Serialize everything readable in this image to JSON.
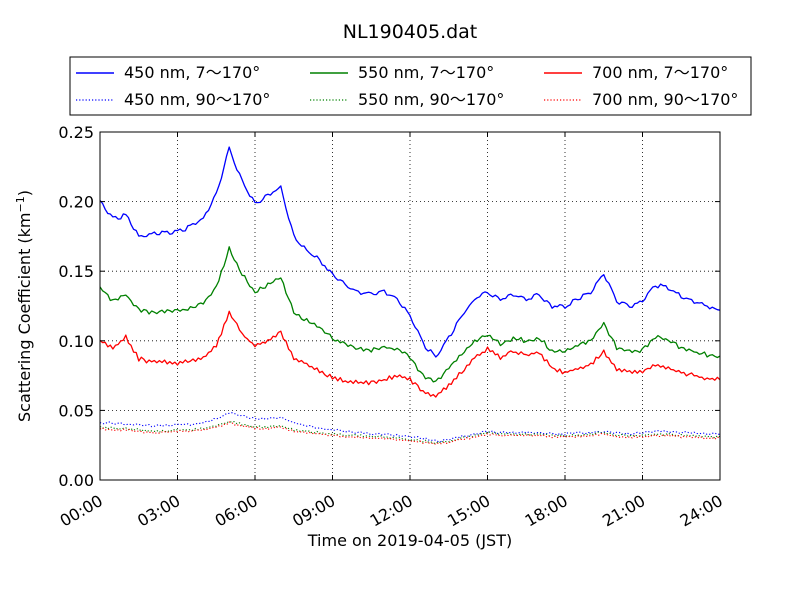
{
  "chart_data": {
    "type": "line",
    "title": "NL190405.dat",
    "xlabel": "Time on 2019-04-05 (JST)",
    "ylabel_main": "Scattering Coefficient (km",
    "ylabel_sup": "−1",
    "ylabel_close": ")",
    "xlim": [
      "00:00",
      "24:00"
    ],
    "ylim": [
      0,
      0.25
    ],
    "grid": true,
    "grid_style": "dotted",
    "legend_position": "top, above plot, 3 columns",
    "x_ticks": [
      {
        "hour": 0,
        "label": "00:00"
      },
      {
        "hour": 3,
        "label": "03:00"
      },
      {
        "hour": 6,
        "label": "06:00"
      },
      {
        "hour": 9,
        "label": "09:00"
      },
      {
        "hour": 12,
        "label": "12:00"
      },
      {
        "hour": 15,
        "label": "15:00"
      },
      {
        "hour": 18,
        "label": "18:00"
      },
      {
        "hour": 21,
        "label": "21:00"
      },
      {
        "hour": 24,
        "label": "24:00"
      }
    ],
    "y_ticks": [
      {
        "value": 0.0,
        "label": "0.00"
      },
      {
        "value": 0.05,
        "label": "0.05"
      },
      {
        "value": 0.1,
        "label": "0.10"
      },
      {
        "value": 0.15,
        "label": "0.15"
      },
      {
        "value": 0.2,
        "label": "0.20"
      },
      {
        "value": 0.25,
        "label": "0.25"
      }
    ],
    "x": [
      "00:00",
      "00:30",
      "01:00",
      "01:30",
      "02:00",
      "02:30",
      "03:00",
      "03:30",
      "04:00",
      "04:30",
      "05:00",
      "05:30",
      "06:00",
      "06:30",
      "07:00",
      "07:30",
      "08:00",
      "08:30",
      "09:00",
      "09:30",
      "10:00",
      "10:30",
      "11:00",
      "11:30",
      "12:00",
      "12:30",
      "13:00",
      "13:30",
      "14:00",
      "14:30",
      "15:00",
      "15:30",
      "16:00",
      "16:30",
      "17:00",
      "17:30",
      "18:00",
      "18:30",
      "19:00",
      "19:30",
      "20:00",
      "20:30",
      "21:00",
      "21:30",
      "22:00",
      "22:30",
      "23:00",
      "23:30",
      "24:00"
    ],
    "series": [
      {
        "name": "450 nm, 7～170°",
        "color": "#0000ff",
        "style": "solid",
        "values": [
          0.2,
          0.188,
          0.19,
          0.175,
          0.177,
          0.178,
          0.178,
          0.182,
          0.188,
          0.205,
          0.238,
          0.215,
          0.198,
          0.205,
          0.21,
          0.175,
          0.165,
          0.158,
          0.148,
          0.14,
          0.135,
          0.133,
          0.135,
          0.13,
          0.118,
          0.098,
          0.088,
          0.102,
          0.118,
          0.13,
          0.135,
          0.13,
          0.133,
          0.13,
          0.133,
          0.125,
          0.125,
          0.13,
          0.135,
          0.148,
          0.128,
          0.125,
          0.128,
          0.14,
          0.138,
          0.132,
          0.128,
          0.125,
          0.122
        ]
      },
      {
        "name": "450 nm, 90～170°",
        "color": "#0000ff",
        "style": "dotted",
        "values": [
          0.041,
          0.041,
          0.04,
          0.04,
          0.039,
          0.039,
          0.04,
          0.04,
          0.041,
          0.044,
          0.048,
          0.046,
          0.044,
          0.044,
          0.045,
          0.041,
          0.039,
          0.037,
          0.036,
          0.035,
          0.034,
          0.033,
          0.033,
          0.032,
          0.031,
          0.03,
          0.028,
          0.029,
          0.031,
          0.033,
          0.035,
          0.034,
          0.034,
          0.034,
          0.034,
          0.033,
          0.033,
          0.034,
          0.034,
          0.035,
          0.034,
          0.033,
          0.034,
          0.035,
          0.035,
          0.034,
          0.034,
          0.033,
          0.033
        ]
      },
      {
        "name": "550 nm, 7～170°",
        "color": "#008000",
        "style": "solid",
        "values": [
          0.138,
          0.128,
          0.133,
          0.122,
          0.12,
          0.121,
          0.121,
          0.123,
          0.127,
          0.138,
          0.166,
          0.148,
          0.135,
          0.14,
          0.146,
          0.12,
          0.115,
          0.11,
          0.102,
          0.097,
          0.094,
          0.093,
          0.095,
          0.094,
          0.088,
          0.075,
          0.07,
          0.08,
          0.09,
          0.1,
          0.105,
          0.098,
          0.102,
          0.1,
          0.102,
          0.093,
          0.093,
          0.097,
          0.1,
          0.112,
          0.095,
          0.092,
          0.093,
          0.103,
          0.1,
          0.095,
          0.092,
          0.09,
          0.089
        ]
      },
      {
        "name": "550 nm, 90～170°",
        "color": "#008000",
        "style": "dotted",
        "values": [
          0.038,
          0.037,
          0.037,
          0.036,
          0.035,
          0.035,
          0.036,
          0.036,
          0.037,
          0.039,
          0.042,
          0.04,
          0.038,
          0.038,
          0.039,
          0.036,
          0.035,
          0.034,
          0.033,
          0.032,
          0.032,
          0.031,
          0.031,
          0.03,
          0.029,
          0.028,
          0.027,
          0.028,
          0.03,
          0.032,
          0.034,
          0.033,
          0.033,
          0.033,
          0.033,
          0.032,
          0.032,
          0.032,
          0.033,
          0.034,
          0.032,
          0.032,
          0.032,
          0.033,
          0.033,
          0.032,
          0.032,
          0.031,
          0.031
        ]
      },
      {
        "name": "700 nm, 7～170°",
        "color": "#ff0000",
        "style": "solid",
        "values": [
          0.1,
          0.095,
          0.103,
          0.087,
          0.085,
          0.085,
          0.084,
          0.086,
          0.088,
          0.096,
          0.12,
          0.105,
          0.096,
          0.1,
          0.106,
          0.088,
          0.083,
          0.078,
          0.074,
          0.071,
          0.07,
          0.07,
          0.072,
          0.075,
          0.072,
          0.064,
          0.06,
          0.068,
          0.078,
          0.088,
          0.094,
          0.088,
          0.092,
          0.09,
          0.092,
          0.08,
          0.077,
          0.08,
          0.083,
          0.092,
          0.08,
          0.078,
          0.077,
          0.083,
          0.08,
          0.077,
          0.075,
          0.073,
          0.072
        ]
      },
      {
        "name": "700 nm, 90～170°",
        "color": "#ff0000",
        "style": "dotted",
        "values": [
          0.037,
          0.036,
          0.036,
          0.035,
          0.034,
          0.034,
          0.035,
          0.035,
          0.036,
          0.038,
          0.041,
          0.039,
          0.037,
          0.037,
          0.038,
          0.035,
          0.034,
          0.033,
          0.032,
          0.031,
          0.031,
          0.03,
          0.03,
          0.029,
          0.028,
          0.027,
          0.026,
          0.027,
          0.029,
          0.031,
          0.033,
          0.032,
          0.032,
          0.032,
          0.032,
          0.031,
          0.031,
          0.031,
          0.032,
          0.033,
          0.031,
          0.031,
          0.031,
          0.032,
          0.032,
          0.031,
          0.031,
          0.03,
          0.03
        ]
      }
    ]
  }
}
